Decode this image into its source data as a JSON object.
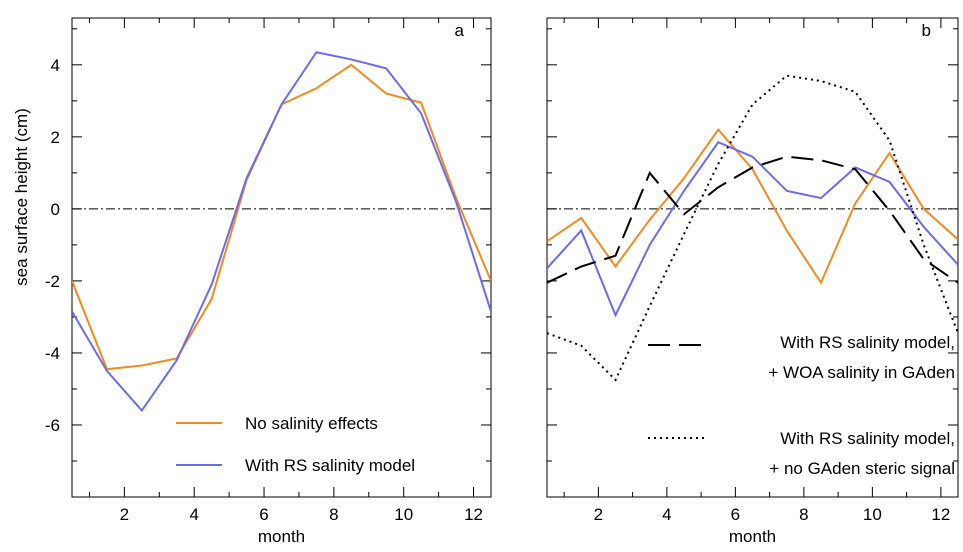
{
  "chart_data": [
    {
      "type": "line",
      "panel_label": "a",
      "xlabel": "month",
      "ylabel": "sea surface height (cm)",
      "xlim": [
        0.5,
        12.5
      ],
      "ylim": [
        -8,
        5.3
      ],
      "xticks": [
        2,
        4,
        6,
        8,
        10,
        12
      ],
      "yticks": [
        -6,
        -4,
        -2,
        0,
        2,
        4
      ],
      "zero_line": true,
      "legend_position": "bottom-right",
      "series": [
        {
          "name": "No salinity effects",
          "color": "#f28a1e",
          "style": "solid",
          "x": [
            0.5,
            1.5,
            2.5,
            3.5,
            4.5,
            5.5,
            6.5,
            7.5,
            8.5,
            9.5,
            10.5,
            11.5,
            12.5
          ],
          "y": [
            -2.0,
            -4.45,
            -4.35,
            -4.15,
            -2.5,
            0.8,
            2.9,
            3.35,
            4.0,
            3.2,
            2.95,
            0.3,
            -2.0
          ]
        },
        {
          "name": "With RS salinity model",
          "color": "#6b6bf2",
          "style": "solid",
          "x": [
            0.5,
            1.5,
            2.5,
            3.5,
            4.5,
            5.5,
            6.5,
            7.5,
            8.5,
            9.5,
            10.5,
            11.5,
            12.5
          ],
          "y": [
            -2.85,
            -4.5,
            -5.6,
            -4.2,
            -2.1,
            0.85,
            2.9,
            4.35,
            4.15,
            3.9,
            2.65,
            0.2,
            -2.85
          ]
        }
      ]
    },
    {
      "type": "line",
      "panel_label": "b",
      "xlabel": "month",
      "xlim": [
        0.5,
        12.5
      ],
      "ylim": [
        -8,
        5.3
      ],
      "xticks": [
        2,
        4,
        6,
        8,
        10,
        12
      ],
      "yticks": [
        -6,
        -4,
        -2,
        0,
        2,
        4
      ],
      "zero_line": true,
      "legend_position": "bottom-right",
      "series": [
        {
          "name": "",
          "color": "#f28a1e",
          "style": "solid",
          "x": [
            0.5,
            1.5,
            2.5,
            3.5,
            4.5,
            5.5,
            6.5,
            7.5,
            8.5,
            9.5,
            10.5,
            11.5,
            12.5
          ],
          "y": [
            -0.9,
            -0.25,
            -1.6,
            -0.3,
            0.85,
            2.2,
            1.1,
            -0.6,
            -2.05,
            0.15,
            1.55,
            0.0,
            -0.85
          ]
        },
        {
          "name": "",
          "color": "#6b6bf2",
          "style": "solid",
          "x": [
            0.5,
            1.5,
            2.5,
            3.5,
            4.5,
            5.5,
            6.5,
            7.5,
            8.5,
            9.5,
            10.5,
            11.5,
            12.5
          ],
          "y": [
            -1.65,
            -0.6,
            -2.95,
            -1.0,
            0.5,
            1.85,
            1.45,
            0.5,
            0.3,
            1.15,
            0.75,
            -0.5,
            -1.55
          ]
        },
        {
          "name": "With RS salinity model, + WOA salinity in GAden",
          "name_lines": [
            "With RS salinity model,",
            "+ WOA salinity in GAden"
          ],
          "color": "#000000",
          "style": "dashed",
          "x": [
            0.5,
            1.5,
            2.5,
            3.5,
            4.5,
            5.5,
            6.5,
            7.5,
            8.5,
            9.5,
            10.5,
            11.5,
            12.5
          ],
          "y": [
            -2.05,
            -1.6,
            -1.3,
            1.0,
            -0.15,
            0.6,
            1.15,
            1.45,
            1.35,
            1.1,
            -0.05,
            -1.4,
            -2.05
          ]
        },
        {
          "name": "With RS salinity model, + no GAden steric signal",
          "name_lines": [
            "With RS salinity model,",
            "+ no GAden steric signal"
          ],
          "color": "#000000",
          "style": "dotted",
          "x": [
            0.5,
            1.5,
            2.5,
            3.5,
            4.5,
            5.5,
            6.5,
            7.5,
            8.5,
            9.5,
            10.5,
            11.5,
            12.5
          ],
          "y": [
            -3.45,
            -3.8,
            -4.75,
            -2.7,
            -0.7,
            1.25,
            2.9,
            3.7,
            3.55,
            3.25,
            1.9,
            -1.0,
            -3.45
          ]
        }
      ]
    }
  ]
}
